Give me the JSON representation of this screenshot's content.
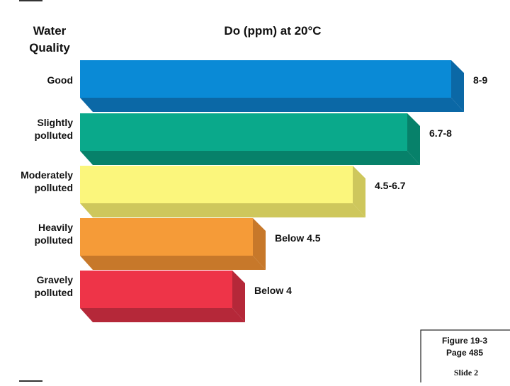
{
  "header": {
    "axis_title": [
      "Water",
      "Quality"
    ],
    "title": "Do (ppm) at 20°C"
  },
  "rows": [
    {
      "label": [
        "Good"
      ],
      "range": "8-9",
      "color": "#0a8ad6",
      "side_color": "#0b68a6"
    },
    {
      "label": [
        "Slightly",
        "polluted"
      ],
      "range": "6.7-8",
      "color": "#0aa98b",
      "side_color": "#07816a"
    },
    {
      "label": [
        "Moderately",
        "polluted"
      ],
      "range": "4.5-6.7",
      "color": "#fbf67c",
      "side_color": "#cec75c"
    },
    {
      "label": [
        "Heavily",
        "polluted"
      ],
      "range": "Below 4.5",
      "color": "#f59b38",
      "side_color": "#c7782a"
    },
    {
      "label": [
        "Gravely",
        "polluted"
      ],
      "range": "Below 4",
      "color": "#ee3448",
      "side_color": "#b52839"
    }
  ],
  "footer": {
    "figure": "Figure 19-3",
    "page": "Page 485",
    "slide": "Slide 2"
  }
}
